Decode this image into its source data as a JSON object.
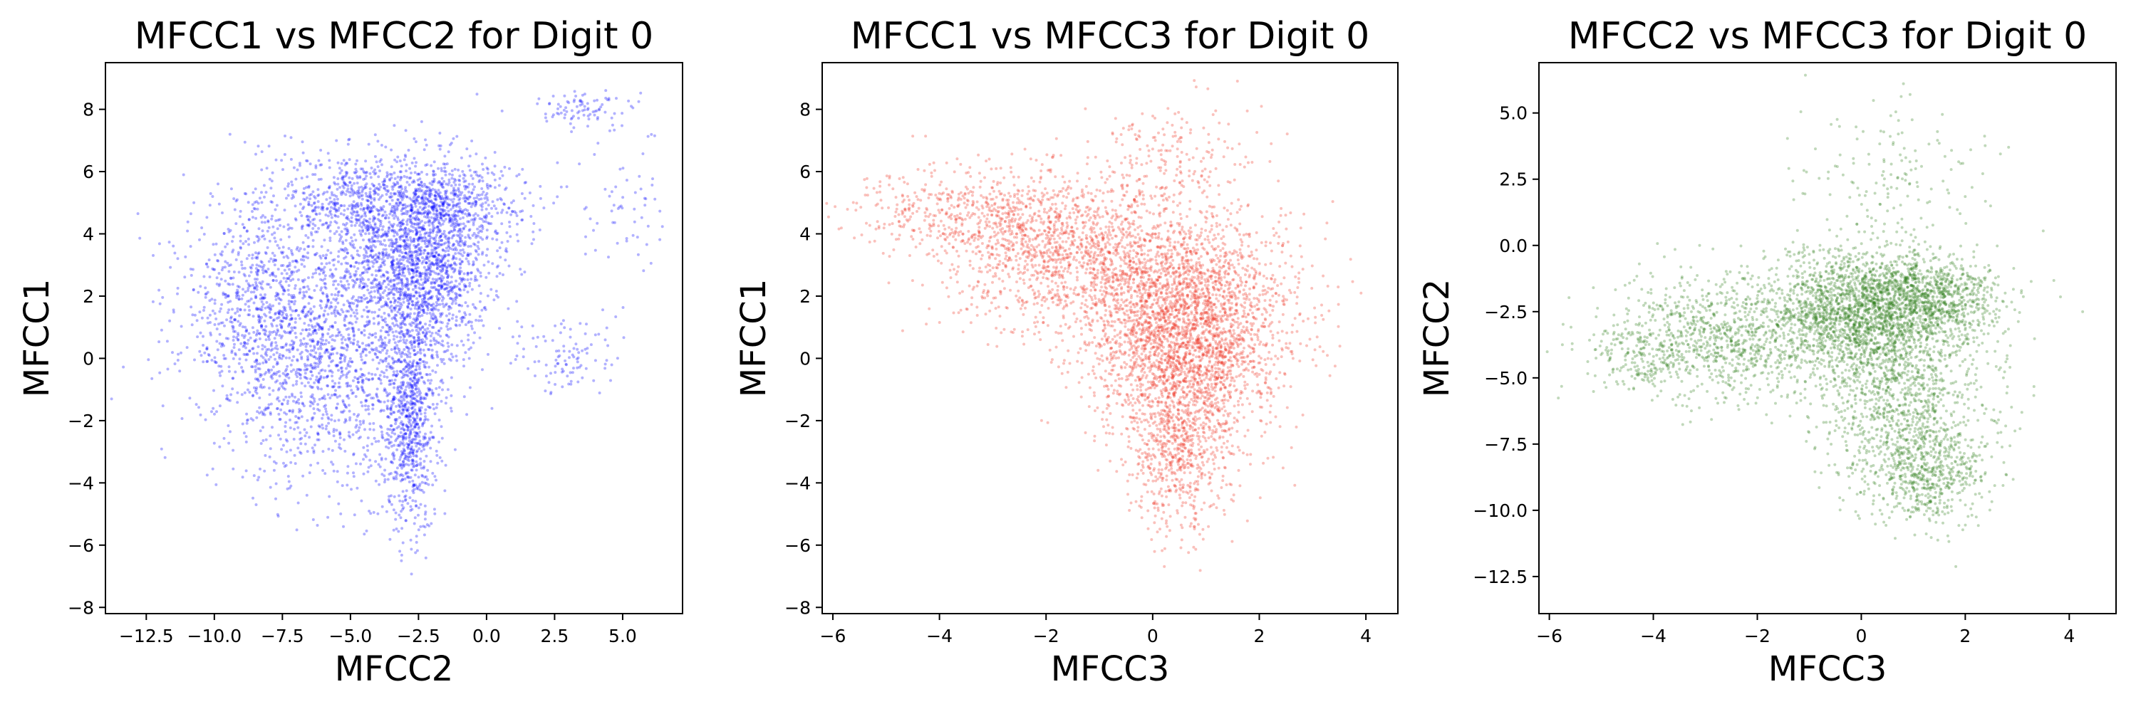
{
  "chart_data": [
    {
      "type": "scatter",
      "title": "MFCC1 vs MFCC2 for Digit 0",
      "xlabel": "MFCC2",
      "ylabel": "MFCC1",
      "xlim": [
        -14,
        7.2
      ],
      "ylim": [
        -8.2,
        9.5
      ],
      "xticks": [
        -12.5,
        -10,
        -7.5,
        -5,
        -2.5,
        0,
        2.5,
        5
      ],
      "xtick_labels": [
        "−12.5",
        "−10.0",
        "−7.5",
        "−5.0",
        "−2.5",
        "0.0",
        "2.5",
        "5.0"
      ],
      "yticks": [
        -8,
        -6,
        -4,
        -2,
        0,
        2,
        4,
        6,
        8
      ],
      "ytick_labels": [
        "−8",
        "−6",
        "−4",
        "−2",
        "0",
        "2",
        "4",
        "6",
        "8"
      ],
      "color": "#0000ff",
      "grid": false,
      "clusters": [
        {
          "cx": -2.5,
          "cy": 3.0,
          "sx": 1.3,
          "sy": 1.6,
          "n": 1900
        },
        {
          "cx": -2.8,
          "cy": -2.0,
          "sx": 0.5,
          "sy": 1.7,
          "n": 750
        },
        {
          "cx": -8.0,
          "cy": 1.5,
          "sx": 1.6,
          "sy": 1.9,
          "n": 1100
        },
        {
          "cx": -5.5,
          "cy": -0.5,
          "sx": 1.7,
          "sy": 1.8,
          "n": 900
        },
        {
          "cx": -5.0,
          "cy": 5.0,
          "sx": 1.2,
          "sy": 0.9,
          "n": 450
        },
        {
          "cx": -1.5,
          "cy": 5.0,
          "sx": 1.5,
          "sy": 0.7,
          "n": 500
        },
        {
          "cx": 3.5,
          "cy": 8.0,
          "sx": 1.0,
          "sy": 0.3,
          "n": 90
        },
        {
          "cx": 3.0,
          "cy": 0.0,
          "sx": 1.0,
          "sy": 0.6,
          "n": 100
        },
        {
          "cx": 5.0,
          "cy": 4.5,
          "sx": 0.8,
          "sy": 1.5,
          "n": 60
        }
      ]
    },
    {
      "type": "scatter",
      "title": "MFCC1 vs MFCC3 for Digit 0",
      "xlabel": "MFCC3",
      "ylabel": "MFCC1",
      "xlim": [
        -6.2,
        4.6
      ],
      "ylim": [
        -8.2,
        9.5
      ],
      "xticks": [
        -6,
        -4,
        -2,
        0,
        2,
        4
      ],
      "xtick_labels": [
        "−6",
        "−4",
        "−2",
        "0",
        "2",
        "4"
      ],
      "yticks": [
        -8,
        -6,
        -4,
        -2,
        0,
        2,
        4,
        6,
        8
      ],
      "ytick_labels": [
        "−8",
        "−6",
        "−4",
        "−2",
        "0",
        "2",
        "4",
        "6",
        "8"
      ],
      "color": "#ee3322",
      "grid": false,
      "clusters": [
        {
          "cx": 0.5,
          "cy": 0.5,
          "sx": 0.8,
          "sy": 1.6,
          "n": 1900
        },
        {
          "cx": 0.5,
          "cy": -3.0,
          "sx": 0.5,
          "sy": 1.3,
          "n": 650
        },
        {
          "cx": -1.2,
          "cy": 3.2,
          "sx": 1.2,
          "sy": 1.2,
          "n": 1300
        },
        {
          "cx": -2.8,
          "cy": 4.5,
          "sx": 1.1,
          "sy": 0.9,
          "n": 550
        },
        {
          "cx": 1.2,
          "cy": 1.5,
          "sx": 0.9,
          "sy": 1.5,
          "n": 900
        },
        {
          "cx": 0.3,
          "cy": 6.5,
          "sx": 0.8,
          "sy": 0.9,
          "n": 180
        },
        {
          "cx": -4.5,
          "cy": 5.0,
          "sx": 0.7,
          "sy": 0.6,
          "n": 100
        }
      ]
    },
    {
      "type": "scatter",
      "title": "MFCC2 vs MFCC3 for Digit 0",
      "xlabel": "MFCC3",
      "ylabel": "MFCC2",
      "xlim": [
        -6.2,
        4.9
      ],
      "ylim": [
        -13.9,
        6.9
      ],
      "xticks": [
        -6,
        -4,
        -2,
        0,
        2,
        4
      ],
      "xtick_labels": [
        "−6",
        "−4",
        "−2",
        "0",
        "2",
        "4"
      ],
      "yticks": [
        -12.5,
        -10,
        -7.5,
        -5,
        -2.5,
        0,
        2.5,
        5
      ],
      "ytick_labels": [
        "−12.5",
        "−10.0",
        "−7.5",
        "−5.0",
        "−2.5",
        "0.0",
        "2.5",
        "5.0"
      ],
      "color": "#2e7d1a",
      "grid": false,
      "clusters": [
        {
          "cx": 0.0,
          "cy": -2.5,
          "sx": 0.9,
          "sy": 1.2,
          "n": 1900
        },
        {
          "cx": -2.5,
          "cy": -3.5,
          "sx": 1.1,
          "sy": 1.1,
          "n": 900
        },
        {
          "cx": 1.2,
          "cy": -8.5,
          "sx": 0.6,
          "sy": 1.0,
          "n": 650
        },
        {
          "cx": 0.8,
          "cy": -5.5,
          "sx": 0.9,
          "sy": 1.5,
          "n": 900
        },
        {
          "cx": 1.3,
          "cy": -2.0,
          "sx": 0.7,
          "sy": 0.8,
          "n": 800
        },
        {
          "cx": 0.5,
          "cy": 2.5,
          "sx": 1.0,
          "sy": 1.5,
          "n": 150
        },
        {
          "cx": -4.2,
          "cy": -4.0,
          "sx": 0.6,
          "sy": 0.8,
          "n": 200
        }
      ]
    }
  ]
}
